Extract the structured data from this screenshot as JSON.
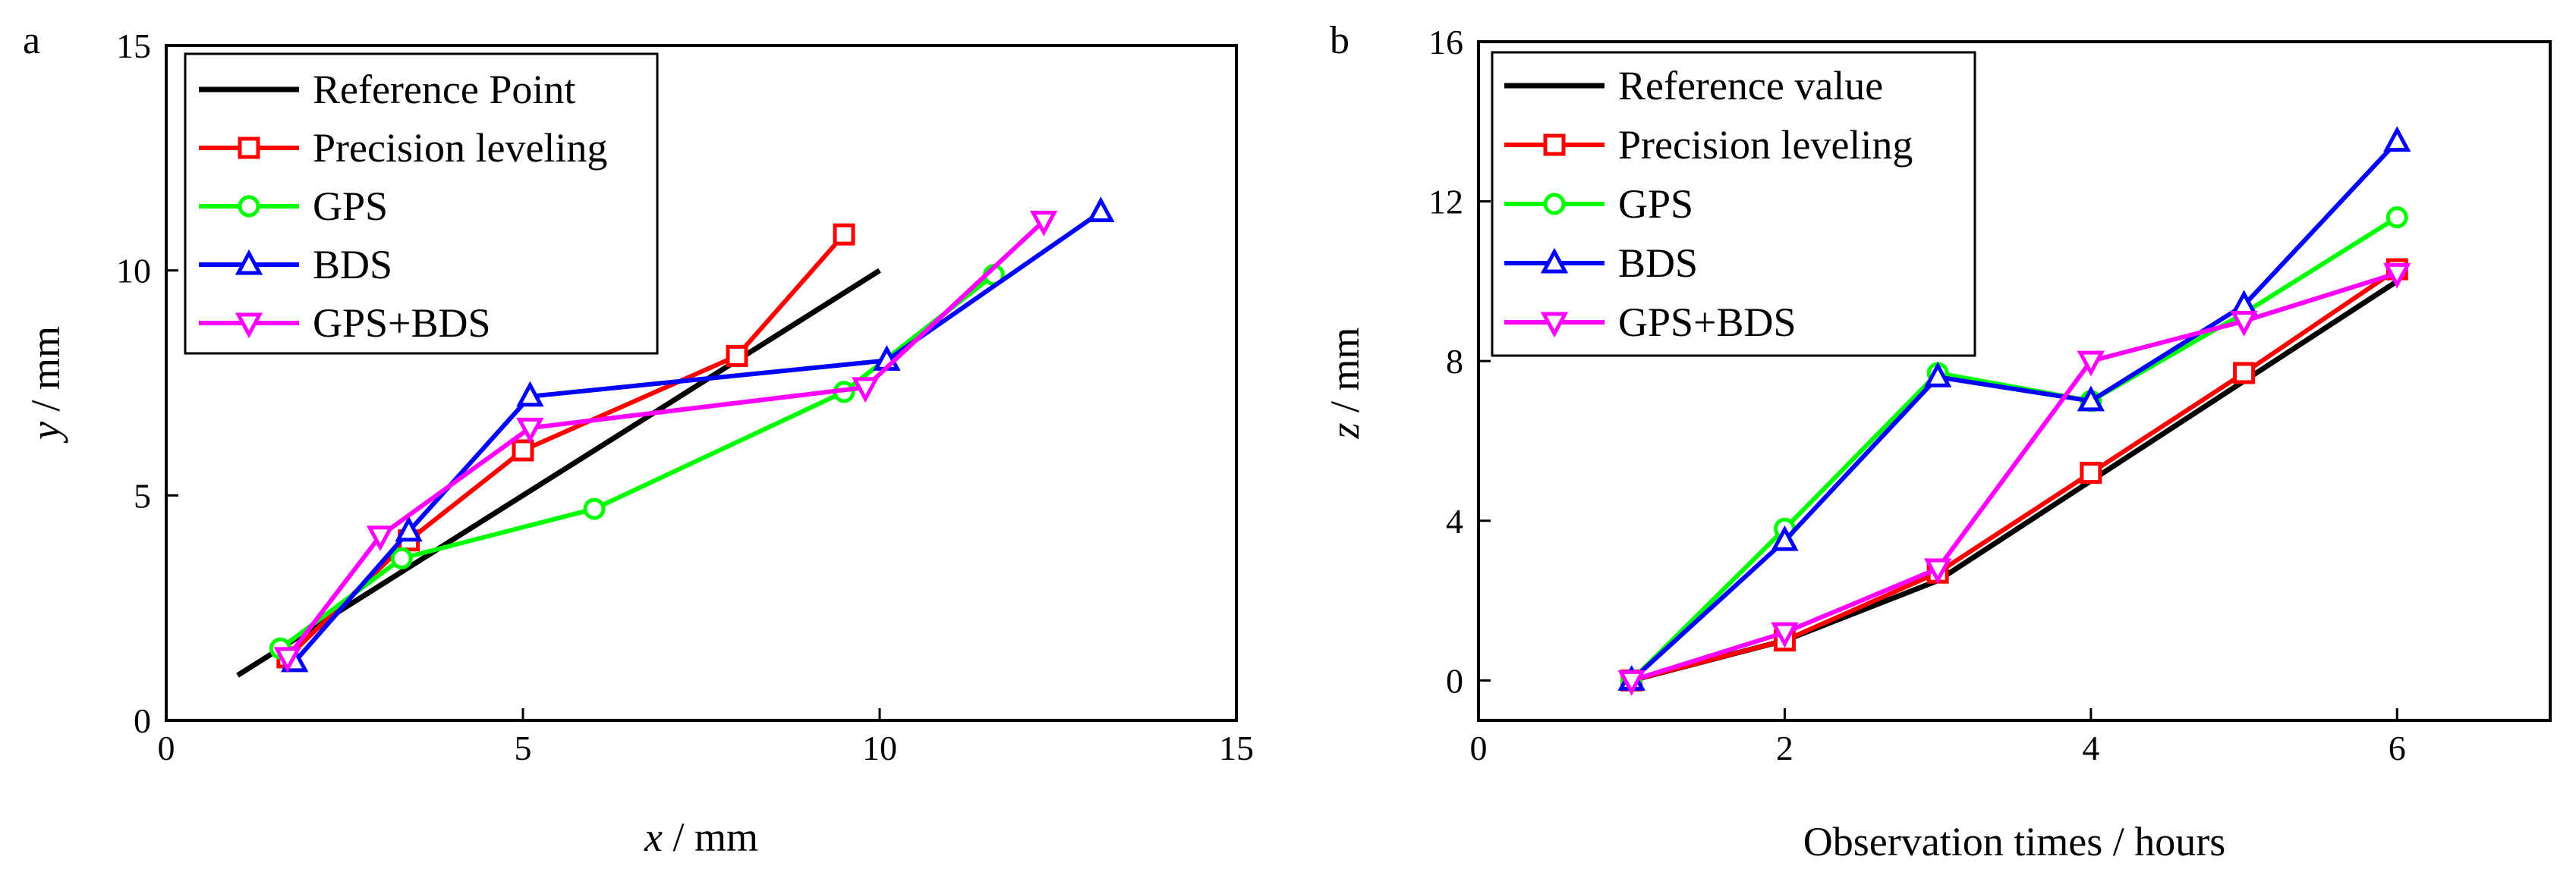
{
  "chart_data": [
    {
      "type": "line",
      "panel_label": "a",
      "xlabel_var": "x",
      "xlabel_unit": " / mm",
      "ylabel_var": "y",
      "ylabel_unit": " / mm",
      "xlim": [
        0,
        15
      ],
      "ylim": [
        0,
        15
      ],
      "xticks": [
        0,
        5,
        10,
        15
      ],
      "yticks": [
        0,
        5,
        10,
        15
      ],
      "xtick_labels": [
        "0",
        "5",
        "10",
        "15"
      ],
      "ytick_labels": [
        "0",
        "5",
        "10",
        "15"
      ],
      "legend_position": "top-left",
      "series": [
        {
          "name": "Reference Point",
          "color": "#000000",
          "marker": "none",
          "x": [
            1,
            10
          ],
          "y": [
            1,
            10
          ]
        },
        {
          "name": "Precision leveling",
          "color": "#ff0000",
          "marker": "square",
          "x": [
            1.7,
            3.4,
            5.0,
            8.0,
            9.5
          ],
          "y": [
            1.4,
            4.0,
            6.0,
            8.1,
            10.8
          ]
        },
        {
          "name": "GPS",
          "color": "#00ff00",
          "marker": "circle",
          "x": [
            1.6,
            3.3,
            6.0,
            9.5,
            11.6
          ],
          "y": [
            1.6,
            3.6,
            4.7,
            7.3,
            9.9
          ]
        },
        {
          "name": "BDS",
          "color": "#0000ff",
          "marker": "triangle-up",
          "x": [
            1.8,
            3.4,
            5.1,
            10.1,
            13.1
          ],
          "y": [
            1.3,
            4.2,
            7.2,
            8.0,
            11.3
          ]
        },
        {
          "name": "GPS+BDS",
          "color": "#ff00ff",
          "marker": "triangle-down",
          "x": [
            1.7,
            3.0,
            5.1,
            9.8,
            12.3
          ],
          "y": [
            1.4,
            4.1,
            6.5,
            7.4,
            11.1
          ]
        }
      ]
    },
    {
      "type": "line",
      "panel_label": "b",
      "xlabel": "Observation times / hours",
      "ylabel_var": "z",
      "ylabel_unit": " / mm",
      "xlim": [
        0,
        7
      ],
      "ylim": [
        -1,
        16
      ],
      "xticks": [
        0,
        2,
        4,
        6
      ],
      "yticks": [
        0,
        4,
        8,
        12,
        16
      ],
      "xtick_labels": [
        "0",
        "2",
        "4",
        "6"
      ],
      "ytick_labels": [
        "0",
        "4",
        "8",
        "12",
        "16"
      ],
      "legend_position": "top-left",
      "series": [
        {
          "name": "Reference value",
          "color": "#000000",
          "marker": "none",
          "x": [
            1,
            2,
            3,
            4,
            5,
            6
          ],
          "y": [
            0,
            1.0,
            2.5,
            5.0,
            7.5,
            10.0
          ]
        },
        {
          "name": "Precision leveling",
          "color": "#ff0000",
          "marker": "square",
          "x": [
            1,
            2,
            3,
            4,
            5,
            6
          ],
          "y": [
            0,
            1.0,
            2.7,
            5.2,
            7.7,
            10.3
          ]
        },
        {
          "name": "GPS",
          "color": "#00ff00",
          "marker": "circle",
          "x": [
            1,
            2,
            3,
            4,
            5,
            6
          ],
          "y": [
            0,
            3.8,
            7.7,
            7.0,
            9.2,
            11.6
          ]
        },
        {
          "name": "BDS",
          "color": "#0000ff",
          "marker": "triangle-up",
          "x": [
            1,
            2,
            3,
            4,
            5,
            6
          ],
          "y": [
            0,
            3.5,
            7.6,
            7.0,
            9.4,
            13.5
          ]
        },
        {
          "name": "GPS+BDS",
          "color": "#ff00ff",
          "marker": "triangle-down",
          "x": [
            1,
            2,
            3,
            4,
            5,
            6
          ],
          "y": [
            0,
            1.2,
            2.8,
            8.0,
            9.0,
            10.2
          ]
        }
      ]
    }
  ]
}
